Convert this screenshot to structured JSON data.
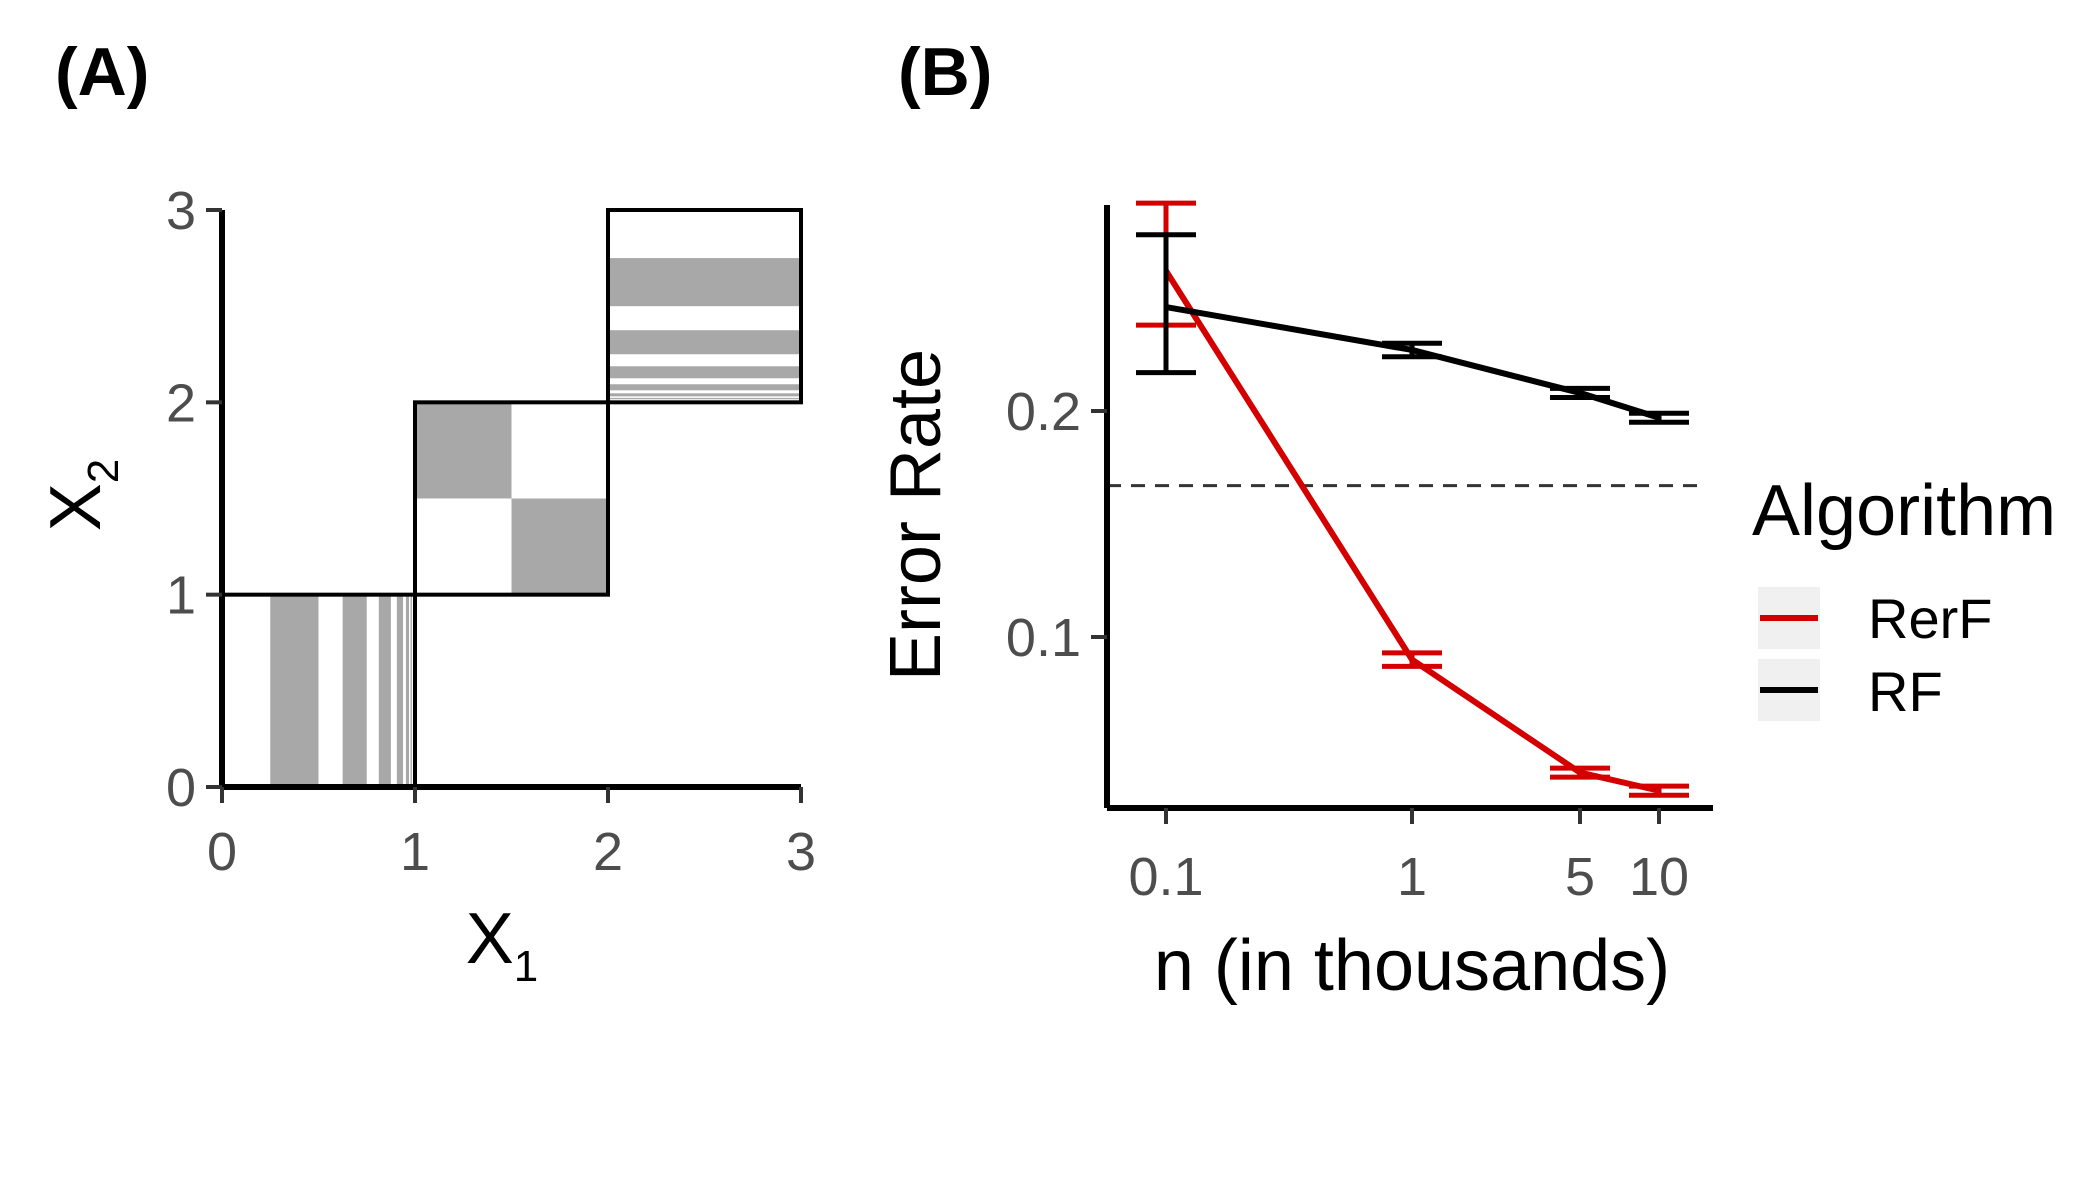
{
  "panels": {
    "a_label": "(A)",
    "b_label": "(B)"
  },
  "colors": {
    "rerf": "#d40000",
    "rf": "#000000",
    "shade": "#a8a8a8",
    "tick_text": "#4d4d4d"
  },
  "chart_data": [
    {
      "type": "diagram",
      "panel": "(A)",
      "xlabel": "X",
      "xlabel_sub": "1",
      "ylabel": "X",
      "ylabel_sub": "2",
      "xlim": [
        0,
        3
      ],
      "ylim": [
        0,
        3
      ],
      "xticks": [
        "0",
        "1",
        "2",
        "3"
      ],
      "yticks": [
        "0",
        "1",
        "2",
        "3"
      ],
      "boxes": [
        {
          "x0": 0,
          "x1": 1,
          "y0": 0,
          "y1": 1
        },
        {
          "x0": 1,
          "x1": 2,
          "y0": 1,
          "y1": 2
        },
        {
          "x0": 2,
          "x1": 3,
          "y0": 2,
          "y1": 3
        }
      ],
      "vertical_stripes": [
        [
          0.25,
          0.5
        ],
        [
          0.625,
          0.75
        ],
        [
          0.8125,
          0.875
        ],
        [
          0.906,
          0.938
        ],
        [
          0.953,
          0.969
        ],
        [
          0.977,
          0.984
        ]
      ],
      "checker_squares": [
        {
          "x0": 1.0,
          "x1": 1.5,
          "y0": 1.5,
          "y1": 2.0
        },
        {
          "x0": 1.5,
          "x1": 2.0,
          "y0": 1.0,
          "y1": 1.5
        }
      ],
      "horizontal_stripes": [
        [
          2.5,
          2.75
        ],
        [
          2.25,
          2.375
        ],
        [
          2.125,
          2.1875
        ],
        [
          2.0625,
          2.094
        ],
        [
          2.031,
          2.047
        ],
        [
          2.016,
          2.023
        ]
      ]
    },
    {
      "type": "line",
      "panel": "(B)",
      "xlabel": "n (in thousands)",
      "ylabel": "Error Rate",
      "xscale": "log",
      "xticks": [
        "0.1",
        "1",
        "5",
        "10"
      ],
      "x": [
        0.1,
        1,
        5,
        10
      ],
      "ylim": [
        0.03,
        0.29
      ],
      "yticks": [
        "0.1",
        "0.2"
      ],
      "hline": 0.167,
      "legend_title": "Algorithm",
      "legend_position": "right",
      "series": [
        {
          "name": "RerF",
          "color": "#d40000",
          "values": [
            0.262,
            0.09,
            0.04,
            0.032
          ],
          "err_lower": [
            0.238,
            0.087,
            0.038,
            0.03
          ],
          "err_upper": [
            0.292,
            0.093,
            0.042,
            0.034
          ]
        },
        {
          "name": "RF",
          "color": "#000000",
          "values": [
            0.246,
            0.227,
            0.208,
            0.197
          ],
          "err_lower": [
            0.217,
            0.224,
            0.206,
            0.195
          ],
          "err_upper": [
            0.278,
            0.23,
            0.21,
            0.199
          ]
        }
      ]
    }
  ]
}
